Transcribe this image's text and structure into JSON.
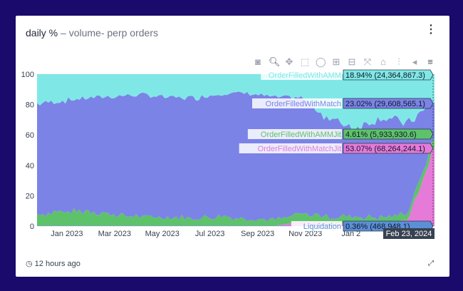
{
  "card": {
    "title_main": "daily %",
    "title_sub": " – volume- perp orders",
    "menu_icon": "kebab-menu-icon",
    "footer_time": "12 hours ago",
    "footer_icon": "clock-icon",
    "expand_icon": "expand-icon"
  },
  "toolbar": {
    "icons": [
      "camera-icon",
      "zoom-icon",
      "pan-icon",
      "box-select-icon",
      "lasso-select-icon",
      "zoom-in-icon",
      "zoom-out-icon",
      "autoscale-icon",
      "reset-axes-icon",
      "spike-lines-icon",
      "hover-closest-icon",
      "hover-compare-icon"
    ]
  },
  "chart_data": {
    "type": "area",
    "stacked": true,
    "normalized": true,
    "title": "",
    "xlabel": "",
    "ylabel": "",
    "ylim": [
      0,
      100
    ],
    "yticks": [
      "0",
      "20",
      "40",
      "60",
      "80",
      "100"
    ],
    "xticks": [
      "Jan 2023",
      "Mar 2023",
      "May 2023",
      "Jul 2023",
      "Sep 2023",
      "Nov 2023",
      "Jan 2"
    ],
    "grid": true,
    "x": [
      "Nov 2022",
      "Dec 2022",
      "Jan 2023",
      "Feb 2023",
      "Mar 2023",
      "Apr 2023",
      "May 2023",
      "Jun 2023",
      "Jul 2023",
      "Aug 2023",
      "Sep 2023",
      "Oct 2023",
      "Nov 2023",
      "Dec 2023",
      "Jan 2024",
      "Feb 2024"
    ],
    "series": [
      {
        "name": "Liquidation",
        "color": "#5b8fd6",
        "values": [
          0.3,
          0.3,
          0.3,
          0.3,
          0.3,
          0.3,
          0.3,
          0.3,
          0.3,
          0.3,
          0.3,
          0.3,
          0.3,
          0.3,
          0.3,
          0.36
        ]
      },
      {
        "name": "OrderFilledWithMatchJit",
        "color": "#e57ad8",
        "values": [
          0,
          0,
          0,
          0,
          0,
          0,
          0,
          0,
          0,
          0,
          3,
          2,
          1,
          1,
          4,
          53.07
        ]
      },
      {
        "name": "OrderFilledWithAMMJit",
        "color": "#5ec26a",
        "values": [
          6,
          7,
          8,
          5,
          4,
          4,
          3,
          4,
          3,
          2,
          3,
          2,
          3,
          2,
          3,
          4.61
        ]
      },
      {
        "name": "OrderFilledWithMatch",
        "color": "#7b83e6",
        "values": [
          74,
          75,
          76,
          80,
          82,
          80,
          81,
          83,
          84,
          82,
          78,
          66,
          60,
          68,
          60,
          23.02
        ]
      },
      {
        "name": "OrderFilledWithAMM",
        "color": "#7fe8e6",
        "values": [
          19.7,
          17.7,
          15.7,
          14.7,
          13.7,
          15.7,
          15.7,
          12.7,
          12.7,
          15.7,
          15.7,
          29.7,
          35.7,
          28.7,
          32.7,
          18.94
        ]
      }
    ],
    "hover": {
      "date": "Feb 23, 2024",
      "items": [
        {
          "name": "OrderFilledWithAMM",
          "text": "18.94% (24,364,867.3)"
        },
        {
          "name": "OrderFilledWithMatch",
          "text": "23.02% (29,608,565.1)"
        },
        {
          "name": "OrderFilledWithAMMJit",
          "text": "4.61% (5,933,930.6)"
        },
        {
          "name": "OrderFilledWithMatchJit",
          "text": "53.07% (68,264,244.1)"
        },
        {
          "name": "Liquidation",
          "text": "0.36% (468,948.1)"
        }
      ]
    }
  }
}
